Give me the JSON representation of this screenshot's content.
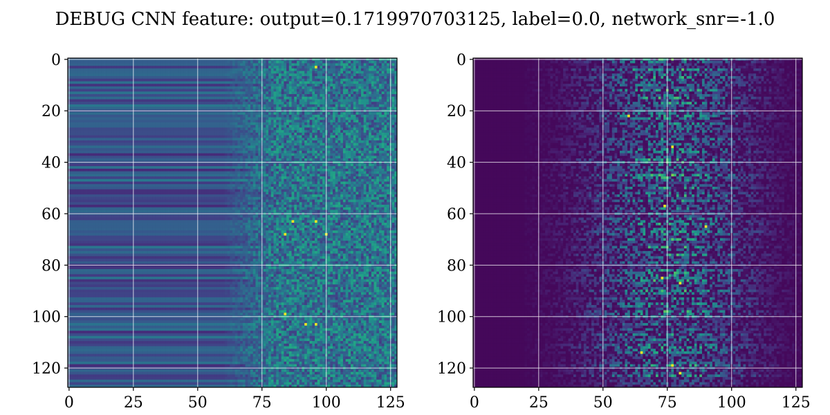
{
  "title": "DEBUG CNN feature: output=0.1719970703125, label=0.0, network_snr=-1.0",
  "chart_data": [
    {
      "type": "heatmap",
      "colormap": "viridis",
      "rows": 128,
      "cols": 128,
      "xlim": [
        -0.5,
        127.5
      ],
      "ylim": [
        127.5,
        -0.5
      ],
      "xticks": [
        0,
        25,
        50,
        75,
        100,
        125
      ],
      "yticks": [
        0,
        20,
        40,
        60,
        80,
        100,
        120
      ],
      "grid": true,
      "pattern": "columns 0-72: smooth horizontal stripes (teal/blue, row-dependent); columns 73-127: noisy speckle, brighter; bright yellow spots near rows 3, 63, 68, 99, 103",
      "hotspots": [
        [
          3,
          96
        ],
        [
          63,
          87
        ],
        [
          63,
          96
        ],
        [
          68,
          84
        ],
        [
          68,
          100
        ],
        [
          99,
          84
        ],
        [
          103,
          96
        ],
        [
          103,
          92
        ]
      ]
    },
    {
      "type": "heatmap",
      "colormap": "viridis",
      "rows": 128,
      "cols": 128,
      "xlim": [
        -0.5,
        127.5
      ],
      "ylim": [
        127.5,
        -0.5
      ],
      "xticks": [
        0,
        25,
        50,
        75,
        100,
        125
      ],
      "yticks": [
        0,
        20,
        40,
        60,
        80,
        100,
        120
      ],
      "grid": true,
      "pattern": "mostly dark purple; bright horizontal streaks concentrated around columns 25-125 with peak near column 75",
      "hotspots": [
        [
          22,
          60
        ],
        [
          34,
          77
        ],
        [
          57,
          74
        ],
        [
          65,
          90
        ],
        [
          85,
          73
        ],
        [
          87,
          80
        ],
        [
          119,
          77
        ],
        [
          122,
          80
        ],
        [
          114,
          65
        ]
      ]
    }
  ]
}
